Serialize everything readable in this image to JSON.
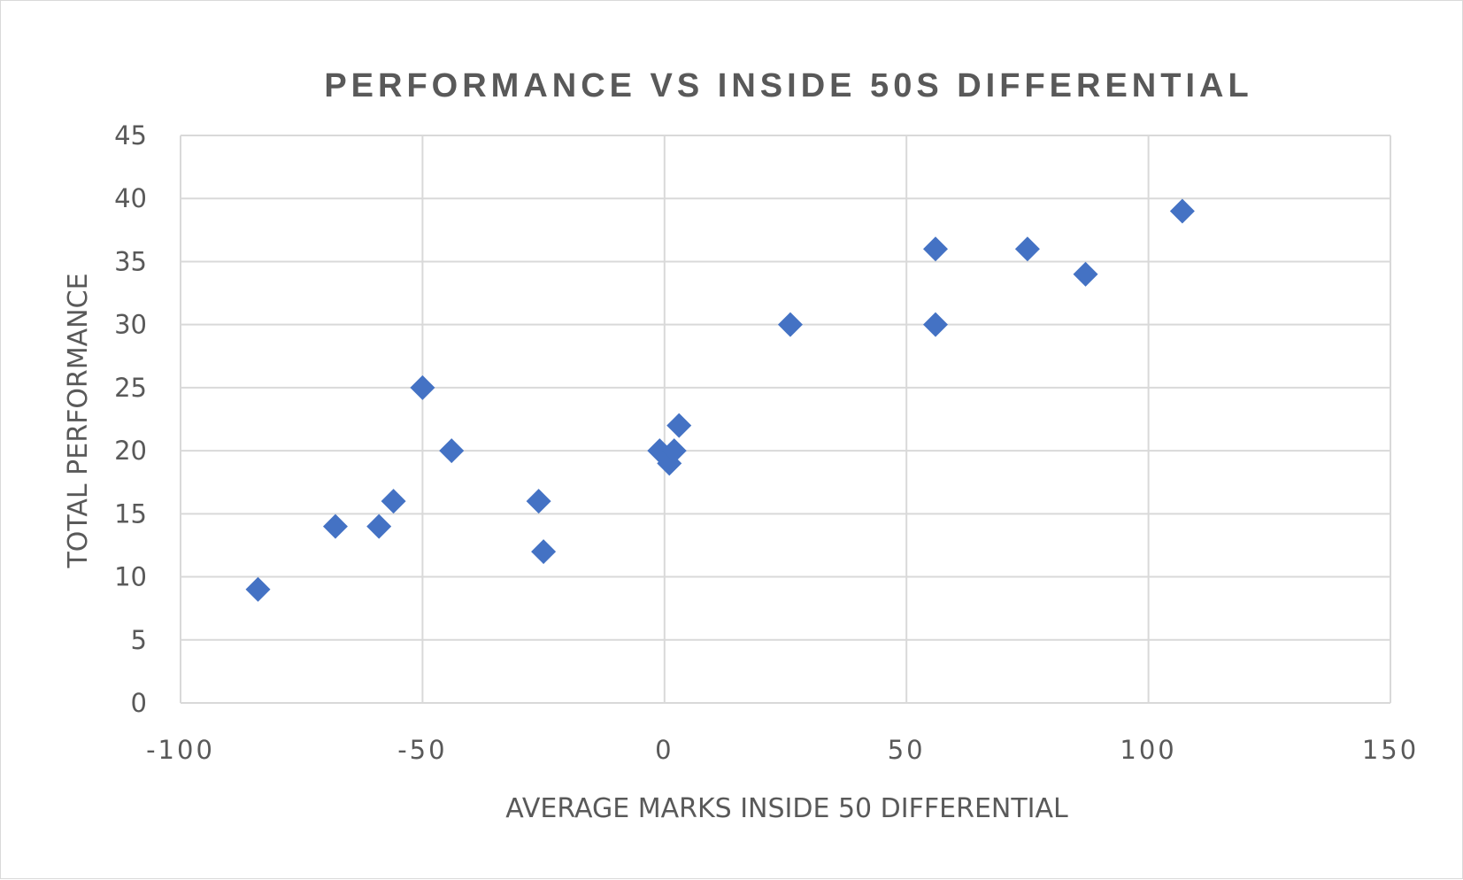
{
  "chart_data": {
    "type": "scatter",
    "title": "PERFORMANCE VS INSIDE 50S DIFFERENTIAL",
    "xlabel": "AVERAGE MARKS INSIDE 50 DIFFERENTIAL",
    "ylabel": "TOTAL PERFORMANCE",
    "xlim": [
      -100,
      150
    ],
    "ylim": [
      0,
      45
    ],
    "x_ticks": [
      "-100",
      "-50",
      "0",
      "50",
      "100",
      "150"
    ],
    "y_ticks": [
      "0",
      "5",
      "10",
      "15",
      "20",
      "25",
      "30",
      "35",
      "40",
      "45"
    ],
    "grid": true,
    "marker": "diamond",
    "color": "#4472c4",
    "points": [
      {
        "x": -84,
        "y": 9
      },
      {
        "x": -68,
        "y": 14
      },
      {
        "x": -59,
        "y": 14
      },
      {
        "x": -56,
        "y": 16
      },
      {
        "x": -50,
        "y": 25
      },
      {
        "x": -44,
        "y": 20
      },
      {
        "x": -26,
        "y": 16
      },
      {
        "x": -25,
        "y": 12
      },
      {
        "x": -1,
        "y": 20
      },
      {
        "x": 1,
        "y": 19
      },
      {
        "x": 2,
        "y": 20
      },
      {
        "x": 3,
        "y": 22
      },
      {
        "x": 26,
        "y": 30
      },
      {
        "x": 56,
        "y": 36
      },
      {
        "x": 56,
        "y": 30
      },
      {
        "x": 75,
        "y": 36
      },
      {
        "x": 87,
        "y": 34
      },
      {
        "x": 107,
        "y": 39
      }
    ]
  }
}
